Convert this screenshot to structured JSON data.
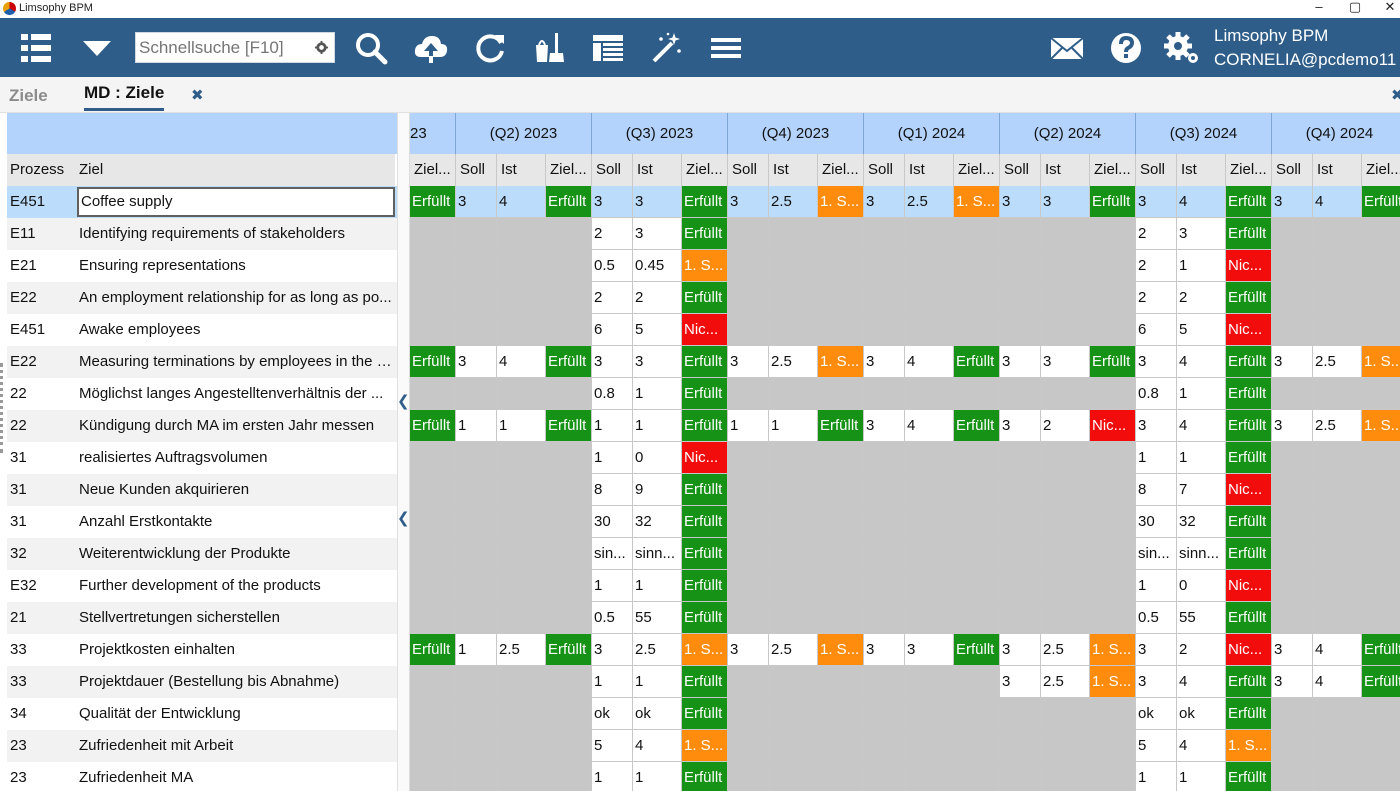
{
  "window": {
    "title": "Limsophy BPM",
    "minimize": "–",
    "maximize": "▢",
    "close": "✕"
  },
  "toolbar": {
    "search_placeholder": "Schnellsuche [F10]",
    "user_app": "Limsophy BPM",
    "user_name": "CORNELIA@pcdemo11",
    "icons": [
      "list-icon",
      "dropdown-icon",
      "search-icon",
      "cloud-upload-icon",
      "refresh-icon",
      "cleanup-icon",
      "layout-icon",
      "magic-wand-icon",
      "menu-icon",
      "mail-icon",
      "help-icon",
      "settings-icon"
    ]
  },
  "tabs": {
    "inactive": "Ziele",
    "active": "MD : Ziele",
    "close_glyph": "✖",
    "panel_close_glyph": "✖"
  },
  "left": {
    "headers": {
      "prozess": "Prozess",
      "ziel": "Ziel"
    },
    "rows": [
      {
        "prozess": "E451",
        "ziel": "Coffee supply"
      },
      {
        "prozess": "E11",
        "ziel": "Identifying requirements of stakeholders"
      },
      {
        "prozess": "E21",
        "ziel": "Ensuring representations"
      },
      {
        "prozess": "E22",
        "ziel": "An employment relationship for as long as po..."
      },
      {
        "prozess": "E451",
        "ziel": "Awake employees"
      },
      {
        "prozess": "E22",
        "ziel": "Measuring terminations by employees in the fi..."
      },
      {
        "prozess": "22",
        "ziel": "Möglichst langes Angestelltenverhältnis der ..."
      },
      {
        "prozess": "22",
        "ziel": "Kündigung durch MA im ersten Jahr messen"
      },
      {
        "prozess": "31",
        "ziel": "realisiertes Auftragsvolumen"
      },
      {
        "prozess": "31",
        "ziel": "Neue Kunden akquirieren"
      },
      {
        "prozess": "31",
        "ziel": "Anzahl Erstkontakte"
      },
      {
        "prozess": "32",
        "ziel": "Weiterentwicklung der Produkte"
      },
      {
        "prozess": "E32",
        "ziel": "Further development of the products"
      },
      {
        "prozess": "21",
        "ziel": "Stellvertretungen sicherstellen"
      },
      {
        "prozess": "33",
        "ziel": "Projektkosten einhalten"
      },
      {
        "prozess": "33",
        "ziel": "Projektdauer (Bestellung bis Abnahme)"
      },
      {
        "prozess": "34",
        "ziel": "Qualität der Entwicklung"
      },
      {
        "prozess": "23",
        "ziel": "Zufriedenheit mit Arbeit"
      },
      {
        "prozess": "23",
        "ziel": "Zufriedenheit MA"
      }
    ]
  },
  "grid": {
    "quarters": [
      "23",
      "(Q2) 2023",
      "(Q3) 2023",
      "(Q4) 2023",
      "(Q1) 2024",
      "(Q2) 2024",
      "(Q3) 2024",
      "(Q4) 2024"
    ],
    "subheaders": [
      "Ziel...",
      "Soll",
      "Ist",
      "Ziel...",
      "Soll",
      "Ist",
      "Ziel...",
      "Soll",
      "Ist",
      "Ziel...",
      "Soll",
      "Ist",
      "Ziel...",
      "Soll",
      "Ist",
      "Ziel...",
      "Soll",
      "Ist",
      "Ziel...",
      "Soll",
      "Ist",
      "Ziel..."
    ],
    "rows": [
      [
        "Erfüllt",
        "3",
        "4",
        "Erfüllt",
        "3",
        "3",
        "Erfüllt",
        "3",
        "2.5",
        "1. S...",
        "3",
        "2.5",
        "1. S...",
        "3",
        "3",
        "Erfüllt",
        "3",
        "4",
        "Erfüllt",
        "3",
        "4",
        "Erfüllt"
      ],
      [
        "",
        "",
        "",
        "",
        "2",
        "3",
        "Erfüllt",
        "",
        "",
        "",
        "",
        "",
        "",
        "",
        "",
        "",
        "2",
        "3",
        "Erfüllt",
        "",
        "",
        ""
      ],
      [
        "",
        "",
        "",
        "",
        "0.5",
        "0.45",
        "1. S...",
        "",
        "",
        "",
        "",
        "",
        "",
        "",
        "",
        "",
        "2",
        "1",
        "Nic...",
        "",
        "",
        ""
      ],
      [
        "",
        "",
        "",
        "",
        "2",
        "2",
        "Erfüllt",
        "",
        "",
        "",
        "",
        "",
        "",
        "",
        "",
        "",
        "2",
        "2",
        "Erfüllt",
        "",
        "",
        ""
      ],
      [
        "",
        "",
        "",
        "",
        "6",
        "5",
        "Nic...",
        "",
        "",
        "",
        "",
        "",
        "",
        "",
        "",
        "",
        "6",
        "5",
        "Nic...",
        "",
        "",
        ""
      ],
      [
        "Erfüllt",
        "3",
        "4",
        "Erfüllt",
        "3",
        "3",
        "Erfüllt",
        "3",
        "2.5",
        "1. S...",
        "3",
        "4",
        "Erfüllt",
        "3",
        "3",
        "Erfüllt",
        "3",
        "4",
        "Erfüllt",
        "3",
        "2.5",
        "1. S..."
      ],
      [
        "",
        "",
        "",
        "",
        "0.8",
        "1",
        "Erfüllt",
        "",
        "",
        "",
        "",
        "",
        "",
        "",
        "",
        "",
        "0.8",
        "1",
        "Erfüllt",
        "",
        "",
        ""
      ],
      [
        "Erfüllt",
        "1",
        "1",
        "Erfüllt",
        "1",
        "1",
        "Erfüllt",
        "1",
        "1",
        "Erfüllt",
        "3",
        "4",
        "Erfüllt",
        "3",
        "2",
        "Nic...",
        "3",
        "4",
        "Erfüllt",
        "3",
        "2.5",
        "1. S..."
      ],
      [
        "",
        "",
        "",
        "",
        "1",
        "0",
        "Nic...",
        "",
        "",
        "",
        "",
        "",
        "",
        "",
        "",
        "",
        "1",
        "1",
        "Erfüllt",
        "",
        "",
        ""
      ],
      [
        "",
        "",
        "",
        "",
        "8",
        "9",
        "Erfüllt",
        "",
        "",
        "",
        "",
        "",
        "",
        "",
        "",
        "",
        "8",
        "7",
        "Nic...",
        "",
        "",
        ""
      ],
      [
        "",
        "",
        "",
        "",
        "30",
        "32",
        "Erfüllt",
        "",
        "",
        "",
        "",
        "",
        "",
        "",
        "",
        "",
        "30",
        "32",
        "Erfüllt",
        "",
        "",
        ""
      ],
      [
        "",
        "",
        "",
        "",
        "sin...",
        "sinn...",
        "Erfüllt",
        "",
        "",
        "",
        "",
        "",
        "",
        "",
        "",
        "",
        "sin...",
        "sinn...",
        "Erfüllt",
        "",
        "",
        ""
      ],
      [
        "",
        "",
        "",
        "",
        "1",
        "1",
        "Erfüllt",
        "",
        "",
        "",
        "",
        "",
        "",
        "",
        "",
        "",
        "1",
        "0",
        "Nic...",
        "",
        "",
        ""
      ],
      [
        "",
        "",
        "",
        "",
        "0.5",
        "55",
        "Erfüllt",
        "",
        "",
        "",
        "",
        "",
        "",
        "",
        "",
        "",
        "0.5",
        "55",
        "Erfüllt",
        "",
        "",
        ""
      ],
      [
        "Erfüllt",
        "1",
        "2.5",
        "Erfüllt",
        "3",
        "2.5",
        "1. S...",
        "3",
        "2.5",
        "1. S...",
        "3",
        "3",
        "Erfüllt",
        "3",
        "2.5",
        "1. S...",
        "3",
        "2",
        "Nic...",
        "3",
        "4",
        "Erfüllt"
      ],
      [
        "",
        "",
        "",
        "",
        "1",
        "1",
        "Erfüllt",
        "",
        "",
        "",
        "",
        "",
        "",
        "3",
        "2.5",
        "1. S...",
        "3",
        "4",
        "Erfüllt",
        "3",
        "4",
        "Erfüllt"
      ],
      [
        "",
        "",
        "",
        "",
        "ok",
        "ok",
        "Erfüllt",
        "",
        "",
        "",
        "",
        "",
        "",
        "",
        "",
        "",
        "ok",
        "ok",
        "Erfüllt",
        "",
        "",
        ""
      ],
      [
        "",
        "",
        "",
        "",
        "5",
        "4",
        "1. S...",
        "",
        "",
        "",
        "",
        "",
        "",
        "",
        "",
        "",
        "5",
        "4",
        "1. S...",
        "",
        "",
        ""
      ],
      [
        "",
        "",
        "",
        "",
        "1",
        "1",
        "Erfüllt",
        "",
        "",
        "",
        "",
        "",
        "",
        "",
        "",
        "",
        "1",
        "1",
        "Erfüllt",
        "",
        "",
        ""
      ]
    ],
    "status_colors": {
      "Erfüllt": "#169216",
      "1. S...": "#ff8c0d",
      "Nic...": "#f20c0c"
    }
  }
}
